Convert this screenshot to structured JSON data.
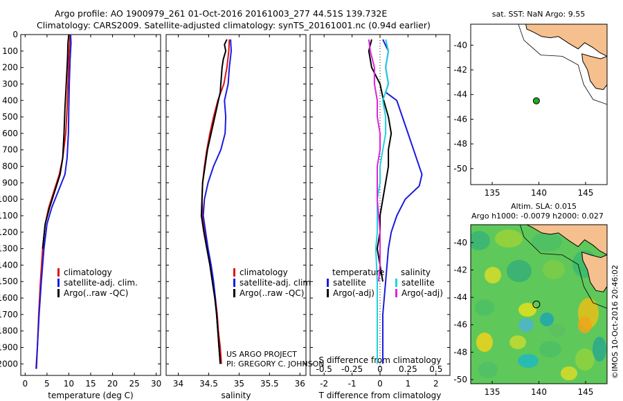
{
  "header": {
    "line1": "Argo profile: AO 1900979_261 01-Oct-2016 20161003_277 44.51S 139.732E",
    "line2": "Climatology: CARS2009. Satellite-adjusted climatology: synTS_20161001.nc (0.94d earlier)"
  },
  "credit": {
    "project": "US ARGO PROJECT",
    "pi": "PI: GREGORY C. JOHNSON"
  },
  "watermark": "©IMOS 10-Oct-2016 20:46:02",
  "colors": {
    "climatology": "#dd1111",
    "satellite": "#1a1adf",
    "argo": "#000000",
    "salinity_satellite": "#22d0e0",
    "salinity_argo": "#dd22dd",
    "land": "#f6bf8e",
    "sst_marker": "#22aa22"
  },
  "chart_data": [
    {
      "type": "line",
      "id": "temperature",
      "xlabel": "temperature (deg C)",
      "xlim": [
        -1,
        31
      ],
      "xticks": [
        0,
        5,
        10,
        15,
        20,
        25,
        30
      ],
      "ylim": [
        0,
        2070
      ],
      "yticks": [
        0,
        100,
        200,
        300,
        400,
        500,
        600,
        700,
        800,
        900,
        1000,
        1100,
        1200,
        1300,
        1400,
        1500,
        1600,
        1700,
        1800,
        1900,
        2000
      ],
      "legend": [
        "climatology",
        "satellite-adj. clim.",
        "Argo(..raw -QC)"
      ],
      "series": [
        {
          "name": "climatology",
          "color": "#dd1111",
          "width": 2,
          "points": [
            [
              10.3,
              0
            ],
            [
              10.2,
              50
            ],
            [
              10.0,
              150
            ],
            [
              9.8,
              300
            ],
            [
              9.6,
              450
            ],
            [
              9.3,
              600
            ],
            [
              8.6,
              750
            ],
            [
              7.8,
              850
            ],
            [
              6.6,
              950
            ],
            [
              5.4,
              1050
            ],
            [
              4.6,
              1150
            ],
            [
              4.0,
              1300
            ],
            [
              3.5,
              1500
            ],
            [
              3.1,
              1700
            ],
            [
              2.8,
              1900
            ],
            [
              2.6,
              2030
            ]
          ]
        },
        {
          "name": "satellite-adj. clim.",
          "color": "#1a1adf",
          "width": 2,
          "points": [
            [
              10.4,
              0
            ],
            [
              10.5,
              50
            ],
            [
              10.3,
              150
            ],
            [
              10.1,
              300
            ],
            [
              10.0,
              450
            ],
            [
              9.9,
              600
            ],
            [
              9.6,
              750
            ],
            [
              9.1,
              850
            ],
            [
              7.6,
              950
            ],
            [
              6.1,
              1050
            ],
            [
              5.0,
              1150
            ],
            [
              4.3,
              1300
            ],
            [
              3.7,
              1500
            ],
            [
              3.2,
              1700
            ],
            [
              2.8,
              1900
            ],
            [
              2.5,
              2030
            ]
          ]
        },
        {
          "name": "Argo(..raw -QC)",
          "color": "#000000",
          "width": 2,
          "points": [
            [
              10.0,
              0
            ],
            [
              9.8,
              50
            ],
            [
              9.7,
              150
            ],
            [
              9.4,
              300
            ],
            [
              9.1,
              450
            ],
            [
              8.9,
              600
            ],
            [
              8.6,
              750
            ],
            [
              8.0,
              850
            ],
            [
              6.8,
              950
            ],
            [
              5.6,
              1050
            ],
            [
              4.6,
              1150
            ],
            [
              4.0,
              1300
            ]
          ]
        }
      ]
    },
    {
      "type": "line",
      "id": "salinity",
      "xlabel": "salinity",
      "xlim": [
        33.8,
        36.1
      ],
      "xticks": [
        34,
        34.5,
        35,
        35.5,
        36
      ],
      "ylim": [
        0,
        2070
      ],
      "legend": [
        "climatology",
        "satellite-adj. clim.",
        "Argo(..raw -QC)"
      ],
      "series": [
        {
          "name": "climatology",
          "color": "#dd1111",
          "width": 2,
          "points": [
            [
              34.84,
              30
            ],
            [
              34.83,
              100
            ],
            [
              34.8,
              200
            ],
            [
              34.75,
              300
            ],
            [
              34.65,
              400
            ],
            [
              34.58,
              500
            ],
            [
              34.52,
              600
            ],
            [
              34.47,
              700
            ],
            [
              34.43,
              800
            ],
            [
              34.4,
              900
            ],
            [
              34.39,
              1000
            ],
            [
              34.4,
              1100
            ],
            [
              34.43,
              1200
            ],
            [
              34.48,
              1300
            ],
            [
              34.53,
              1400
            ],
            [
              34.57,
              1500
            ],
            [
              34.61,
              1600
            ],
            [
              34.64,
              1700
            ],
            [
              34.66,
              1800
            ],
            [
              34.69,
              1900
            ],
            [
              34.71,
              2000
            ]
          ]
        },
        {
          "name": "satellite-adj. clim.",
          "color": "#1a1adf",
          "width": 2,
          "points": [
            [
              34.86,
              30
            ],
            [
              34.87,
              100
            ],
            [
              34.84,
              200
            ],
            [
              34.82,
              300
            ],
            [
              34.76,
              400
            ],
            [
              34.78,
              500
            ],
            [
              34.77,
              600
            ],
            [
              34.7,
              700
            ],
            [
              34.58,
              800
            ],
            [
              34.49,
              900
            ],
            [
              34.43,
              1000
            ],
            [
              34.41,
              1100
            ],
            [
              34.45,
              1200
            ],
            [
              34.49,
              1300
            ],
            [
              34.54,
              1400
            ],
            [
              34.58,
              1500
            ],
            [
              34.61,
              1600
            ],
            [
              34.63,
              1700
            ],
            [
              34.65,
              1800
            ],
            [
              34.67,
              1900
            ],
            [
              34.69,
              2000
            ]
          ]
        },
        {
          "name": "Argo(..raw -QC)",
          "color": "#000000",
          "width": 2,
          "points": [
            [
              34.8,
              30
            ],
            [
              34.76,
              60
            ],
            [
              34.78,
              100
            ],
            [
              34.74,
              150
            ],
            [
              34.72,
              200
            ],
            [
              34.71,
              250
            ],
            [
              34.7,
              300
            ],
            [
              34.69,
              350
            ],
            [
              34.66,
              400
            ],
            [
              34.6,
              500
            ],
            [
              34.54,
              600
            ],
            [
              34.48,
              700
            ],
            [
              34.44,
              800
            ],
            [
              34.4,
              900
            ],
            [
              34.39,
              1000
            ],
            [
              34.38,
              1100
            ],
            [
              34.42,
              1200
            ],
            [
              34.47,
              1300
            ],
            [
              34.52,
              1400
            ],
            [
              34.56,
              1500
            ],
            [
              34.6,
              1600
            ],
            [
              34.63,
              1700
            ],
            [
              34.65,
              1800
            ],
            [
              34.67,
              1900
            ],
            [
              34.69,
              2000
            ]
          ]
        }
      ]
    },
    {
      "type": "line",
      "id": "difference",
      "xlabel": "T difference from climatology",
      "top_xlabel": "S difference from climatology",
      "xlim": [
        -2.5,
        2.5
      ],
      "xticks": [
        -2,
        -1,
        0,
        1,
        2
      ],
      "top_xtick_labels": [
        "-0.5",
        "-0.25",
        "0",
        "0.25",
        "0.5"
      ],
      "ylim": [
        0,
        2070
      ],
      "legend_left_title": "temperature",
      "legend_right_title": "salinity",
      "legend_left": [
        "satellite",
        "Argo(-adj)"
      ],
      "legend_right": [
        "satellite",
        "Argo(-adj)"
      ],
      "series": [
        {
          "name": "T satellite",
          "color": "#1a1adf",
          "width": 2,
          "points": [
            [
              0.1,
              30
            ],
            [
              0.3,
              100
            ],
            [
              0.2,
              200
            ],
            [
              0.3,
              300
            ],
            [
              0.2,
              350
            ],
            [
              0.6,
              400
            ],
            [
              0.9,
              550
            ],
            [
              1.2,
              700
            ],
            [
              1.5,
              850
            ],
            [
              1.4,
              920
            ],
            [
              0.9,
              1000
            ],
            [
              0.6,
              1100
            ],
            [
              0.4,
              1200
            ],
            [
              0.3,
              1300
            ],
            [
              0.2,
              1500
            ],
            [
              0.1,
              1700
            ],
            [
              0.1,
              1900
            ],
            [
              0.1,
              2000
            ]
          ]
        },
        {
          "name": "T Argo(-adj)",
          "color": "#000000",
          "width": 2,
          "points": [
            [
              -0.3,
              30
            ],
            [
              -0.4,
              100
            ],
            [
              -0.3,
              200
            ],
            [
              0,
              300
            ],
            [
              0.1,
              380
            ],
            [
              0.3,
              500
            ],
            [
              0.4,
              600
            ],
            [
              0.3,
              700
            ],
            [
              0.3,
              800
            ],
            [
              0.2,
              900
            ],
            [
              0.1,
              1000
            ],
            [
              0,
              1100
            ],
            [
              0,
              1200
            ],
            [
              -0.1,
              1300
            ],
            [
              0,
              1400
            ],
            [
              0.1,
              1500
            ]
          ]
        },
        {
          "name": "S satellite",
          "color": "#22d0e0",
          "width": 2,
          "points": [
            [
              0.2,
              30
            ],
            [
              0.3,
              100
            ],
            [
              0.2,
              200
            ],
            [
              0.3,
              300
            ],
            [
              0.1,
              400
            ],
            [
              0.2,
              500
            ],
            [
              0.2,
              600
            ],
            [
              0.1,
              700
            ],
            [
              0,
              800
            ],
            [
              0,
              900
            ],
            [
              -0.1,
              1000
            ],
            [
              -0.1,
              1100
            ],
            [
              -0.1,
              1200
            ],
            [
              -0.15,
              1300
            ],
            [
              -0.1,
              1500
            ],
            [
              -0.1,
              1700
            ],
            [
              -0.1,
              1900
            ],
            [
              -0.1,
              2000
            ]
          ]
        },
        {
          "name": "S Argo(-adj)",
          "color": "#dd22dd",
          "width": 2,
          "points": [
            [
              -0.4,
              30
            ],
            [
              -0.35,
              100
            ],
            [
              -0.2,
              200
            ],
            [
              -0.2,
              300
            ],
            [
              -0.1,
              400
            ],
            [
              -0.1,
              500
            ],
            [
              0,
              600
            ],
            [
              0,
              700
            ],
            [
              -0.1,
              800
            ],
            [
              -0.1,
              900
            ],
            [
              -0.1,
              1000
            ],
            [
              -0.05,
              1100
            ],
            [
              0,
              1200
            ],
            [
              0,
              1300
            ],
            [
              0,
              1400
            ],
            [
              -0.05,
              1500
            ]
          ]
        }
      ]
    },
    {
      "type": "scatter",
      "id": "sst_map",
      "title": "sat. SST: NaN Argo: 9.55",
      "xlim": [
        132.7,
        147.3
      ],
      "ylim": [
        -51.3,
        -38.3
      ],
      "xticks": [
        135,
        140,
        145
      ],
      "yticks": [
        -40,
        -42,
        -44,
        -46,
        -48,
        -50
      ],
      "points": [
        {
          "lon": 139.732,
          "lat": -44.51
        }
      ]
    },
    {
      "type": "heatmap",
      "id": "sla_map",
      "title1": "Altim. SLA: 0.015",
      "title2": "Argo h1000: -0.0079 h2000: 0.027",
      "xlim": [
        132.7,
        147.3
      ],
      "ylim": [
        -50.3,
        -38.7
      ],
      "xticks": [
        135,
        140,
        145
      ],
      "yticks": [
        -40,
        -42,
        -44,
        -46,
        -48,
        -50
      ],
      "points": [
        {
          "lon": 139.732,
          "lat": -44.51
        }
      ]
    }
  ]
}
